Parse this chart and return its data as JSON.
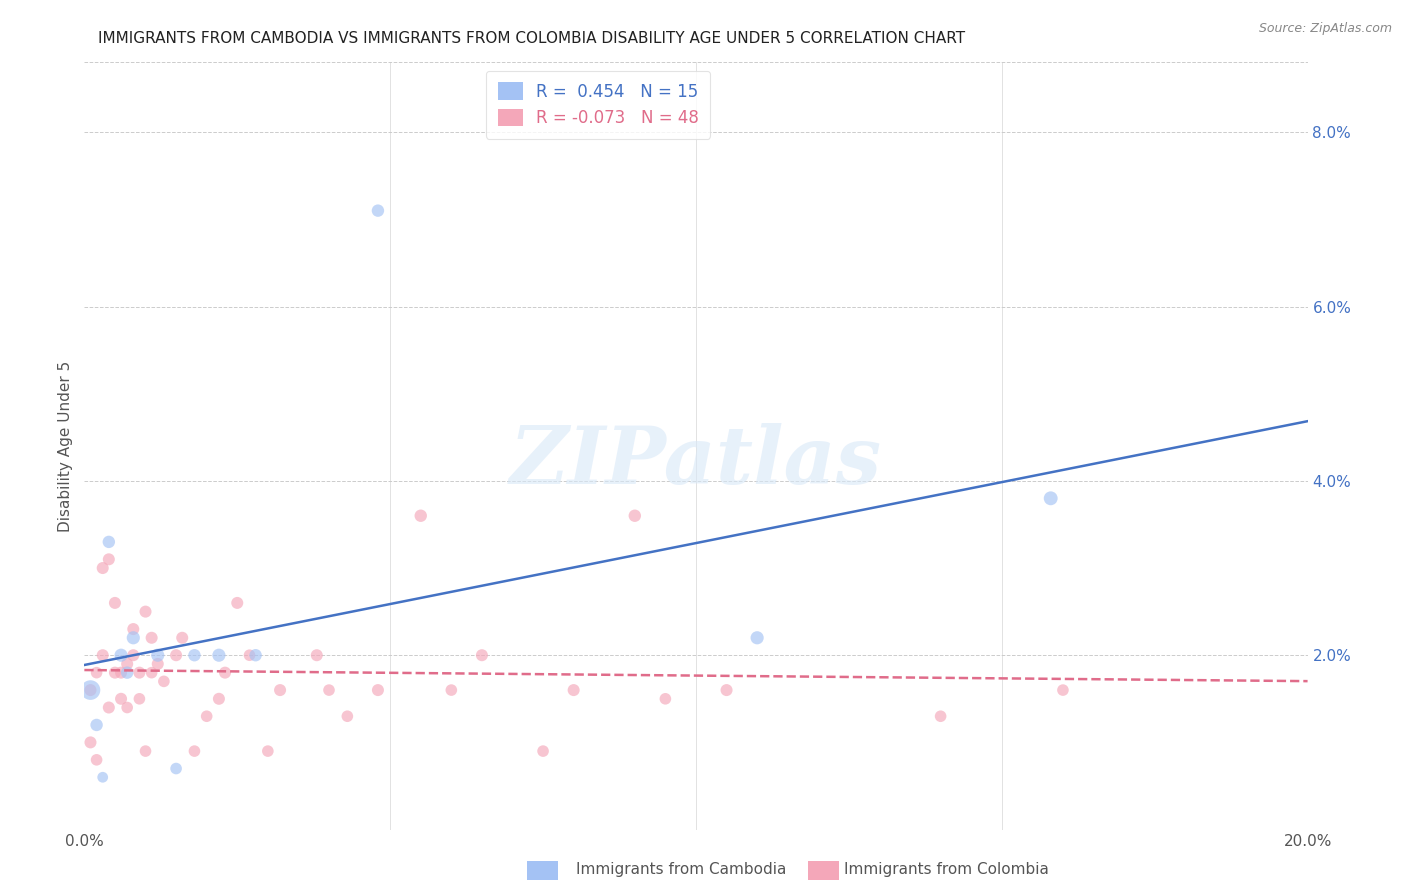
{
  "title": "IMMIGRANTS FROM CAMBODIA VS IMMIGRANTS FROM COLOMBIA DISABILITY AGE UNDER 5 CORRELATION CHART",
  "source": "Source: ZipAtlas.com",
  "ylabel": "Disability Age Under 5",
  "legend_label1": "Immigrants from Cambodia",
  "legend_label2": "Immigrants from Colombia",
  "R1": 0.454,
  "N1": 15,
  "R2": -0.073,
  "N2": 48,
  "xlim": [
    0.0,
    0.2
  ],
  "ylim": [
    0.0,
    0.088
  ],
  "right_yticks": [
    0.0,
    0.02,
    0.04,
    0.06,
    0.08
  ],
  "right_yticklabels": [
    "",
    "2.0%",
    "4.0%",
    "6.0%",
    "8.0%"
  ],
  "xticks": [
    0.0,
    0.05,
    0.1,
    0.15,
    0.2
  ],
  "xticklabels": [
    "0.0%",
    "",
    "",
    "",
    "20.0%"
  ],
  "color_cambodia": "#a4c2f4",
  "color_colombia": "#f4a7b9",
  "line_cambodia": "#4472c4",
  "line_colombia": "#e06c8a",
  "background_color": "#ffffff",
  "watermark_text": "ZIPatlas",
  "cambodia_x": [
    0.001,
    0.002,
    0.003,
    0.004,
    0.006,
    0.007,
    0.008,
    0.012,
    0.015,
    0.018,
    0.022,
    0.028,
    0.048,
    0.11,
    0.158
  ],
  "cambodia_y": [
    0.016,
    0.012,
    0.006,
    0.033,
    0.02,
    0.018,
    0.022,
    0.02,
    0.007,
    0.02,
    0.02,
    0.02,
    0.071,
    0.022,
    0.038
  ],
  "cambodia_size": [
    200,
    80,
    60,
    80,
    90,
    80,
    90,
    90,
    70,
    80,
    90,
    80,
    80,
    90,
    100
  ],
  "colombia_x": [
    0.001,
    0.001,
    0.002,
    0.002,
    0.003,
    0.003,
    0.004,
    0.004,
    0.005,
    0.005,
    0.006,
    0.006,
    0.007,
    0.007,
    0.008,
    0.008,
    0.009,
    0.009,
    0.01,
    0.01,
    0.011,
    0.011,
    0.012,
    0.013,
    0.015,
    0.016,
    0.018,
    0.02,
    0.022,
    0.023,
    0.025,
    0.027,
    0.03,
    0.032,
    0.038,
    0.04,
    0.043,
    0.048,
    0.055,
    0.06,
    0.065,
    0.075,
    0.08,
    0.09,
    0.095,
    0.105,
    0.14,
    0.16
  ],
  "colombia_y": [
    0.01,
    0.016,
    0.008,
    0.018,
    0.02,
    0.03,
    0.014,
    0.031,
    0.018,
    0.026,
    0.018,
    0.015,
    0.019,
    0.014,
    0.02,
    0.023,
    0.018,
    0.015,
    0.009,
    0.025,
    0.022,
    0.018,
    0.019,
    0.017,
    0.02,
    0.022,
    0.009,
    0.013,
    0.015,
    0.018,
    0.026,
    0.02,
    0.009,
    0.016,
    0.02,
    0.016,
    0.013,
    0.016,
    0.036,
    0.016,
    0.02,
    0.009,
    0.016,
    0.036,
    0.015,
    0.016,
    0.013,
    0.016
  ],
  "colombia_size": [
    75,
    75,
    70,
    70,
    75,
    75,
    75,
    75,
    75,
    75,
    75,
    75,
    75,
    70,
    75,
    75,
    75,
    70,
    70,
    75,
    75,
    70,
    75,
    70,
    75,
    75,
    70,
    70,
    75,
    75,
    75,
    70,
    70,
    75,
    75,
    70,
    70,
    75,
    80,
    70,
    75,
    70,
    75,
    80,
    70,
    75,
    70,
    70
  ],
  "title_fontsize": 11,
  "axis_fontsize": 11,
  "source_fontsize": 9
}
